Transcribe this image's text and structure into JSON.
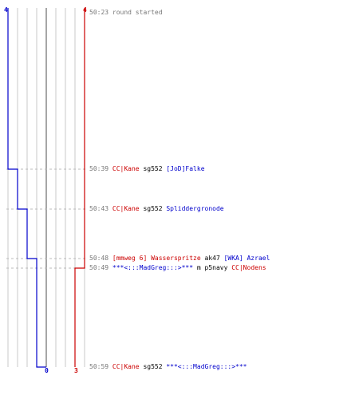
{
  "colors": {
    "team_blue": "#0000cc",
    "team_red": "#cc0000",
    "grid": "#c8c8c8",
    "zero_line": "#888888",
    "dash": "#bbbbbb"
  },
  "scores": {
    "blue_start": "4",
    "red_start": "4",
    "blue_end": "0",
    "red_end": "3"
  },
  "events": [
    {
      "time": "50:23",
      "parts": [
        {
          "text": "round started",
          "color": "gray"
        }
      ]
    },
    {
      "time": "50:39",
      "parts": [
        {
          "text": "CC|Kane",
          "color": "red"
        },
        {
          "text": " sg552 ",
          "color": "black"
        },
        {
          "text": "[JoD]Falke",
          "color": "blue"
        }
      ]
    },
    {
      "time": "50:43",
      "parts": [
        {
          "text": "CC|Kane",
          "color": "red"
        },
        {
          "text": " sg552 ",
          "color": "black"
        },
        {
          "text": "Spliddergronode",
          "color": "blue"
        }
      ]
    },
    {
      "time": "50:48",
      "parts": [
        {
          "text": "[mmweg 6] Wasserspritze",
          "color": "red"
        },
        {
          "text": " ak47 ",
          "color": "black"
        },
        {
          "text": "[WKA] Azrael",
          "color": "blue"
        }
      ]
    },
    {
      "time": "50:49",
      "parts": [
        {
          "text": "***<:::MadGreg:::>***",
          "color": "blue"
        },
        {
          "text": " m p5navy ",
          "color": "black"
        },
        {
          "text": "CC|Nodens",
          "color": "red"
        }
      ]
    },
    {
      "time": "50:59",
      "parts": [
        {
          "text": "CC|Kane",
          "color": "red"
        },
        {
          "text": " sg552 ",
          "color": "black"
        },
        {
          "text": "***<:::MadGreg:::>***",
          "color": "blue"
        }
      ]
    }
  ],
  "blue_alive": [
    4,
    3,
    2,
    1,
    1,
    0
  ],
  "red_alive": [
    4,
    4,
    4,
    4,
    3,
    3
  ]
}
